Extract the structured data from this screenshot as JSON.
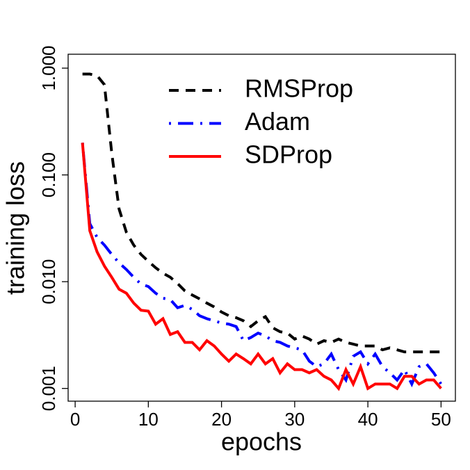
{
  "chart_data": {
    "type": "line",
    "xlabel": "epochs",
    "ylabel": "training loss",
    "x": [
      1,
      2,
      3,
      4,
      5,
      6,
      7,
      8,
      9,
      10,
      11,
      12,
      13,
      14,
      15,
      16,
      17,
      18,
      19,
      20,
      21,
      22,
      23,
      24,
      25,
      26,
      27,
      28,
      29,
      30,
      31,
      32,
      33,
      34,
      35,
      36,
      37,
      38,
      39,
      40,
      41,
      42,
      43,
      44,
      45,
      46,
      47,
      48,
      49,
      50
    ],
    "series": [
      {
        "name": "RMSProp",
        "color": "#000000",
        "linestyle": "dashed",
        "values": [
          0.88,
          0.88,
          0.85,
          0.7,
          0.16,
          0.048,
          0.029,
          0.022,
          0.018,
          0.0155,
          0.0135,
          0.012,
          0.011,
          0.0096,
          0.0082,
          0.0075,
          0.0069,
          0.0063,
          0.0058,
          0.0052,
          0.0048,
          0.0046,
          0.0043,
          0.0038,
          0.0043,
          0.0047,
          0.0037,
          0.0034,
          0.0033,
          0.0029,
          0.0031,
          0.0029,
          0.0026,
          0.0028,
          0.0027,
          0.0029,
          0.0027,
          0.0026,
          0.0025,
          0.0025,
          0.0025,
          0.0023,
          0.0024,
          0.0023,
          0.0022,
          0.0022,
          0.0022,
          0.0022,
          0.0022,
          0.0022
        ]
      },
      {
        "name": "Adam",
        "color": "#0000ff",
        "linestyle": "dotdash",
        "values": [
          0.2,
          0.035,
          0.026,
          0.022,
          0.018,
          0.015,
          0.013,
          0.011,
          0.0095,
          0.009,
          0.0078,
          0.007,
          0.0068,
          0.0057,
          0.006,
          0.0055,
          0.0048,
          0.0045,
          0.0043,
          0.0041,
          0.004,
          0.0038,
          0.0028,
          0.003,
          0.0033,
          0.0031,
          0.0028,
          0.0027,
          0.0025,
          0.0024,
          0.0023,
          0.0018,
          0.0016,
          0.0017,
          0.0021,
          0.0015,
          0.0012,
          0.002,
          0.0022,
          0.0017,
          0.0021,
          0.0016,
          0.0014,
          0.0012,
          0.0015,
          0.0011,
          0.0016,
          0.0017,
          0.0014,
          0.0011
        ]
      },
      {
        "name": "SDProp",
        "color": "#ff0000",
        "linestyle": "solid",
        "values": [
          0.2,
          0.03,
          0.019,
          0.014,
          0.011,
          0.0085,
          0.0078,
          0.0063,
          0.0054,
          0.0053,
          0.004,
          0.0045,
          0.0032,
          0.0034,
          0.0027,
          0.0027,
          0.0023,
          0.0028,
          0.0025,
          0.0021,
          0.0018,
          0.0021,
          0.0019,
          0.0017,
          0.0021,
          0.0017,
          0.0019,
          0.0014,
          0.0017,
          0.0015,
          0.0015,
          0.0014,
          0.0015,
          0.0013,
          0.0012,
          0.001,
          0.0015,
          0.0011,
          0.0016,
          0.001,
          0.0011,
          0.0011,
          0.0011,
          0.001,
          0.0013,
          0.0013,
          0.0011,
          0.0012,
          0.0012,
          0.001
        ]
      }
    ],
    "xlim": [
      -0.96,
      51.96
    ],
    "xticks": [
      0,
      10,
      20,
      30,
      40,
      50
    ],
    "ylim": [
      0.00076,
      1.35
    ],
    "ylog": true,
    "yticks": [
      {
        "value": 0.001,
        "label": "0.001"
      },
      {
        "value": 0.01,
        "label": "0.010"
      },
      {
        "value": 0.1,
        "label": "0.100"
      },
      {
        "value": 1,
        "label": "1.000"
      }
    ],
    "legend": "top"
  }
}
